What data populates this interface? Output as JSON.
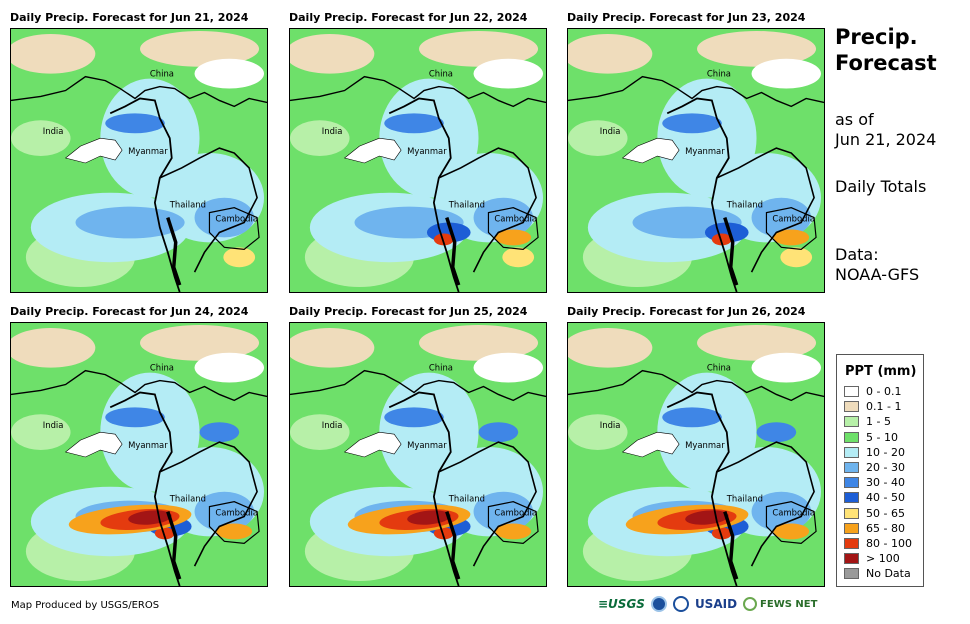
{
  "panels": [
    {
      "title": "Daily Precip. Forecast for Jun 21, 2024",
      "level": 1
    },
    {
      "title": "Daily Precip. Forecast for Jun 22, 2024",
      "level": 2
    },
    {
      "title": "Daily Precip. Forecast for Jun 23, 2024",
      "level": 2
    },
    {
      "title": "Daily Precip. Forecast for Jun 24, 2024",
      "level": 3
    },
    {
      "title": "Daily Precip. Forecast for Jun 25, 2024",
      "level": 3
    },
    {
      "title": "Daily Precip. Forecast for Jun 26, 2024",
      "level": 3
    }
  ],
  "map_labels": {
    "china": "China",
    "india": "India",
    "myanmar": "Myanmar",
    "thailand": "Thailand",
    "cambodia": "Cambodia"
  },
  "side": {
    "title_line1": "Precip.",
    "title_line2": "Forecast",
    "asof_line1": "as of",
    "asof_line2": "Jun 21, 2024",
    "totals": "Daily Totals",
    "data_line1": "Data:",
    "data_line2": "NOAA-GFS"
  },
  "legend": {
    "title": "PPT (mm)",
    "items": [
      {
        "label": "0 - 0.1",
        "color": "#ffffff"
      },
      {
        "label": "0.1 - 1",
        "color": "#efdcbc"
      },
      {
        "label": "1 - 5",
        "color": "#b7f0a8"
      },
      {
        "label": "5 - 10",
        "color": "#6ee06a"
      },
      {
        "label": "10 - 20",
        "color": "#b4ecf5"
      },
      {
        "label": "20 - 30",
        "color": "#6fb4ee"
      },
      {
        "label": "30 - 40",
        "color": "#3f86e6"
      },
      {
        "label": "40 - 50",
        "color": "#1d5ed6"
      },
      {
        "label": "50 - 65",
        "color": "#ffe377"
      },
      {
        "label": "65 - 80",
        "color": "#f7a21c"
      },
      {
        "label": "80 - 100",
        "color": "#e43b0f"
      },
      {
        "label": "> 100",
        "color": "#a31515"
      },
      {
        "label": "No Data",
        "color": "#9a9a9a"
      }
    ]
  },
  "footer": {
    "credit": "Map Produced by USGS/EROS",
    "logo_usgs": "≡USGS",
    "logo_usaid": "USAID",
    "logo_fews": "FEWS NET"
  }
}
